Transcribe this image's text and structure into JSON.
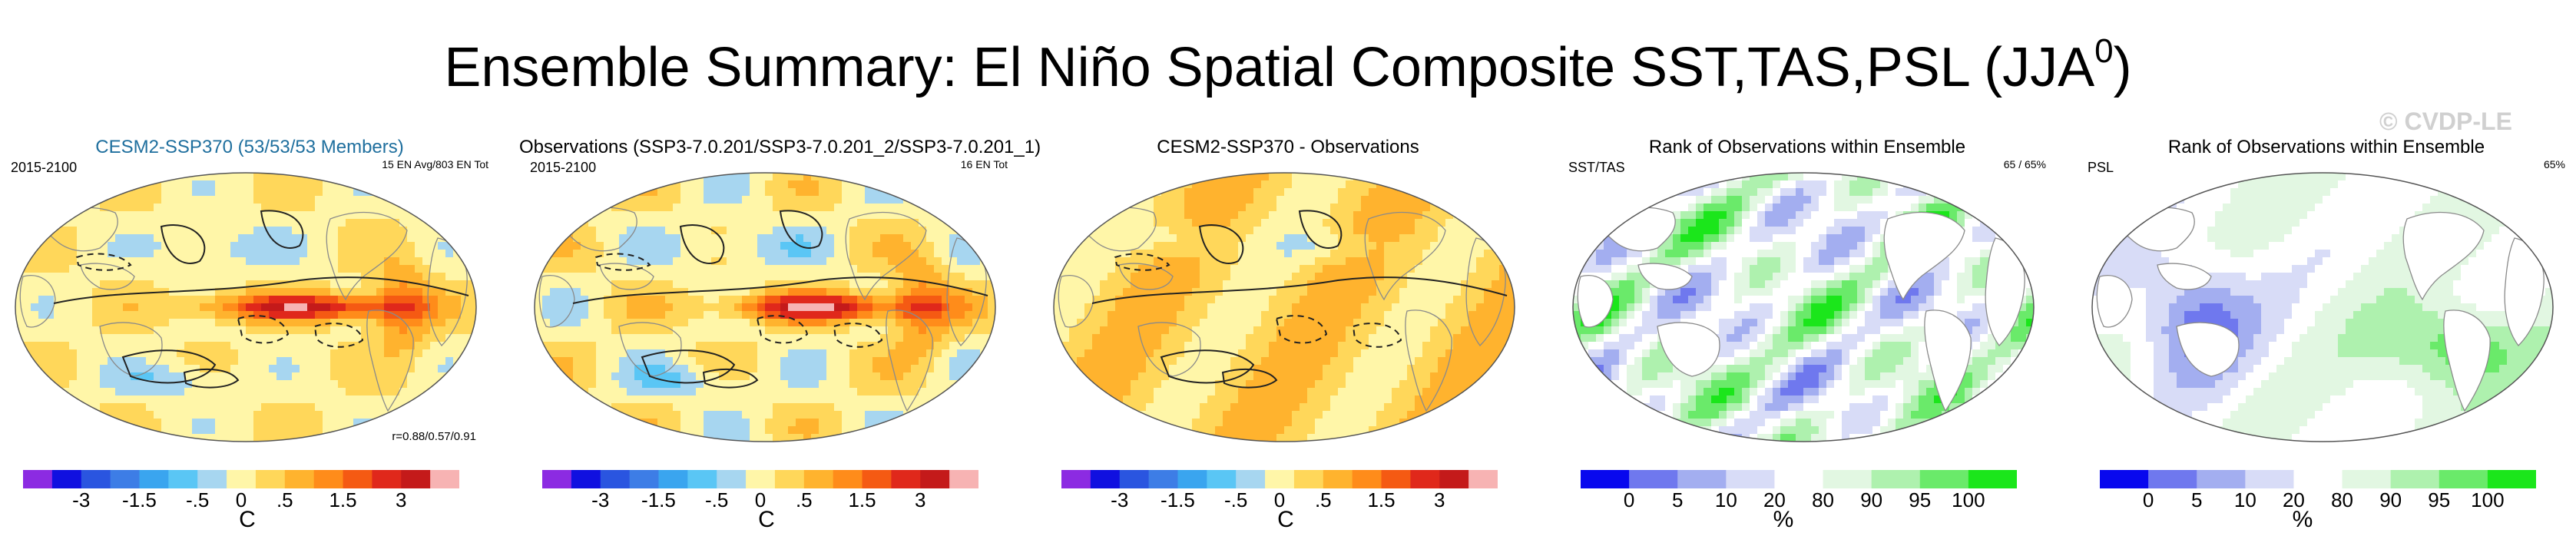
{
  "title": {
    "main": "Ensemble Summary: El Niño Spatial Composite SST,TAS,PSL (JJA",
    "sup": "0",
    "close": ")"
  },
  "watermark": "© CVDP-LE",
  "colors": {
    "sst_scale": [
      "#8c2be2",
      "#1010e0",
      "#2a55e0",
      "#3d7de6",
      "#3aa5ef",
      "#5ac6f5",
      "#a7d6f0",
      "#fff6a8",
      "#ffd75a",
      "#ffb32e",
      "#ff8c1a",
      "#f55a13",
      "#e0281b",
      "#c41a1a",
      "#f7b3b3"
    ],
    "rank_scale": [
      "#0808ee",
      "#6f78ee",
      "#a3aef0",
      "#d8dcf7",
      "#ffffff",
      "#e2f7e2",
      "#aef1ae",
      "#6aea6a",
      "#1be61b"
    ]
  },
  "chart_data": [
    {
      "type": "heatmap",
      "title": "CESM2-SSP370 (53/53/53 Members)",
      "subtitle_left": "2015-2100",
      "subtitle_right": "15 EN Avg/803 EN Tot",
      "annotation": "r=0.88/0.57/0.91",
      "units": "C",
      "colorbar_ticks": [
        "-3",
        "-1.5",
        "-.5",
        "0",
        ".5",
        "1.5",
        "3"
      ]
    },
    {
      "type": "heatmap",
      "title": "Observations (SSP3-7.0.201/SSP3-7.0.201_2/SSP3-7.0.201_1)",
      "subtitle_left": "2015-2100",
      "subtitle_right": "16 EN Tot",
      "units": "C",
      "colorbar_ticks": [
        "-3",
        "-1.5",
        "-.5",
        "0",
        ".5",
        "1.5",
        "3"
      ]
    },
    {
      "type": "heatmap",
      "title": "CESM2-SSP370 - Observations",
      "units": "C",
      "colorbar_ticks": [
        "-3",
        "-1.5",
        "-.5",
        "0",
        ".5",
        "1.5",
        "3"
      ]
    },
    {
      "type": "heatmap",
      "title": "Rank of Observations within Ensemble",
      "subtitle_left": "SST/TAS",
      "subtitle_right": "65 /  65%",
      "units": "%",
      "colorbar_ticks": [
        "0",
        "5",
        "10",
        "20",
        "80",
        "90",
        "95",
        "100"
      ]
    },
    {
      "type": "heatmap",
      "title": "Rank of Observations within Ensemble",
      "subtitle_left": "PSL",
      "subtitle_right": "65%",
      "units": "%",
      "colorbar_ticks": [
        "0",
        "5",
        "10",
        "20",
        "80",
        "90",
        "95",
        "100"
      ]
    }
  ]
}
